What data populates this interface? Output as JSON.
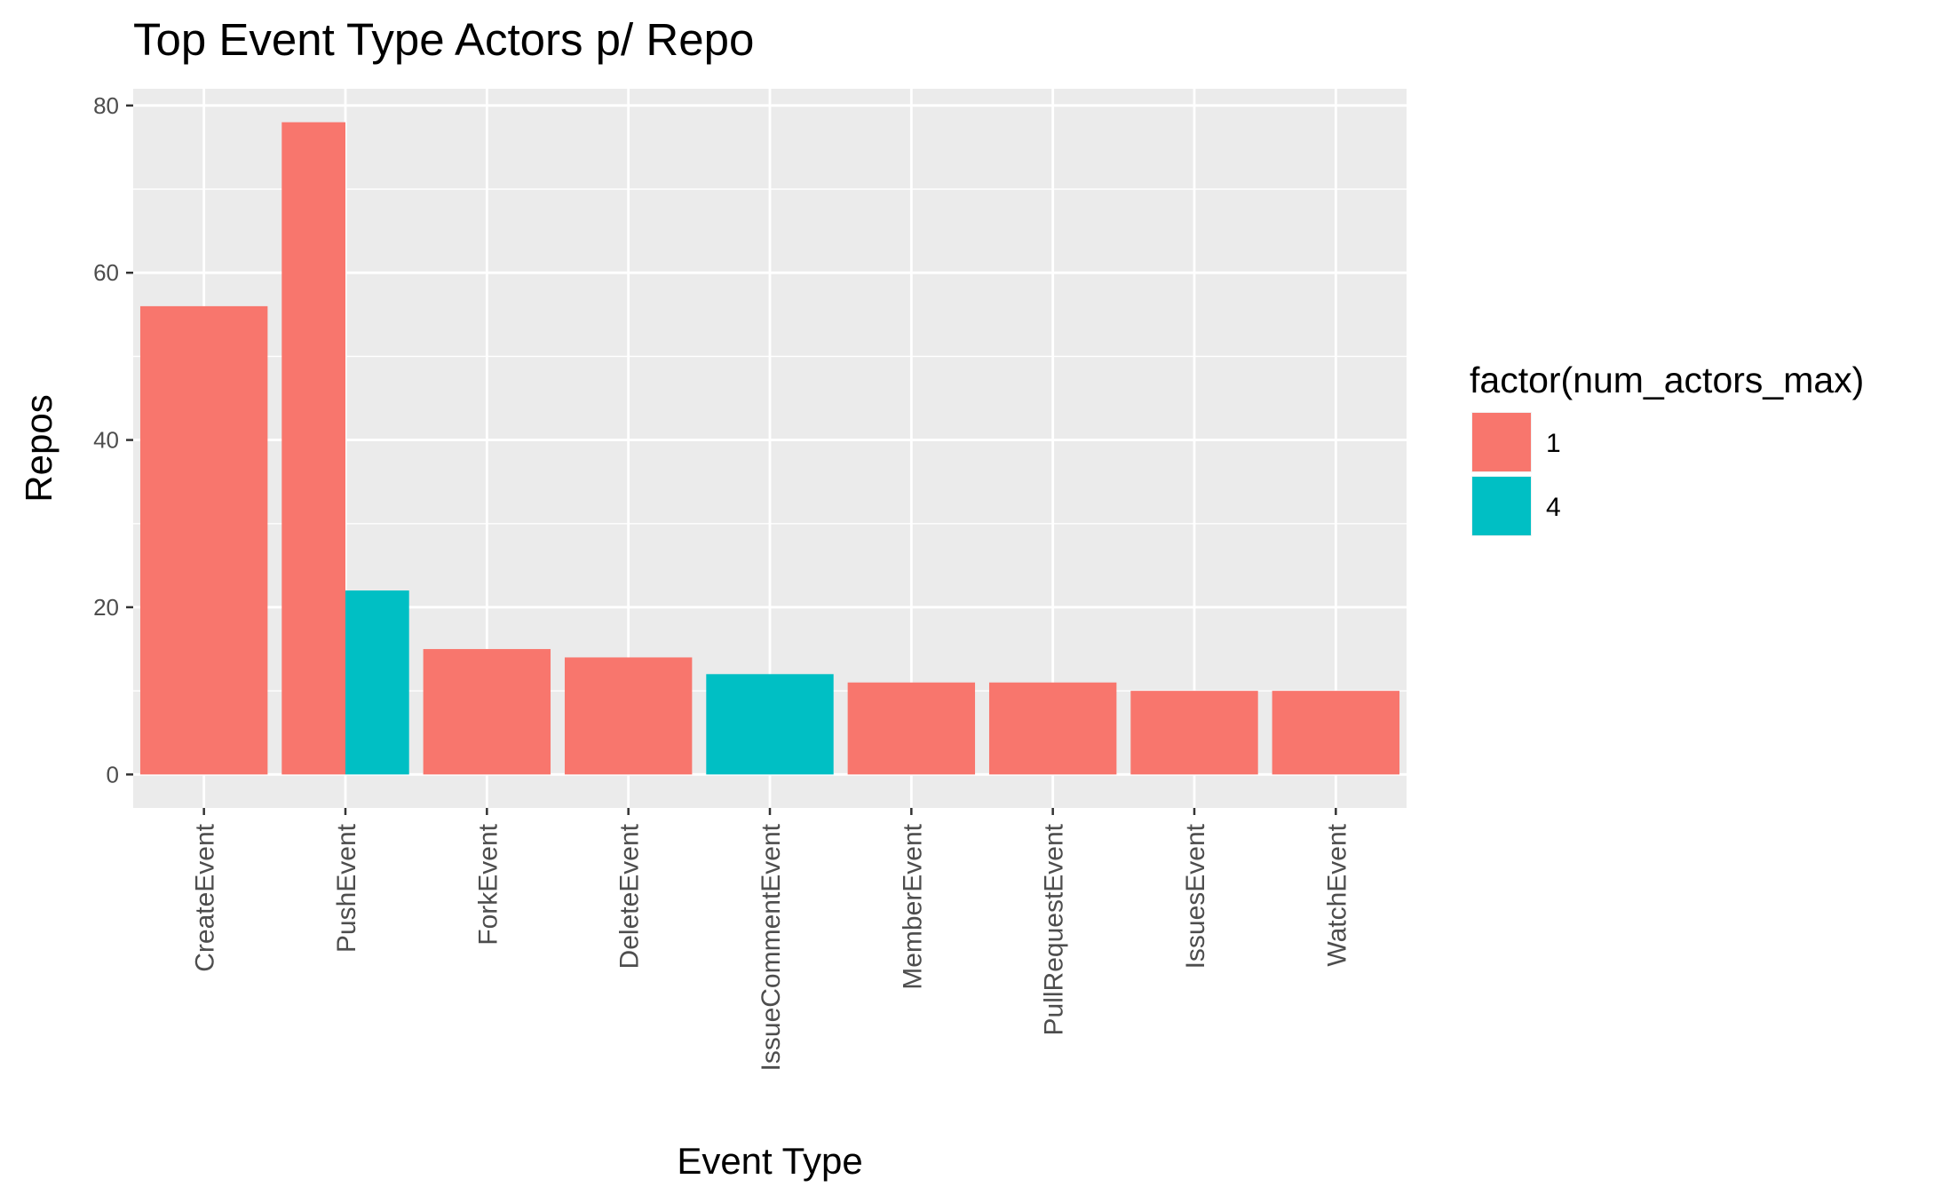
{
  "chart_data": {
    "type": "bar",
    "position": "dodge",
    "title": "Top Event Type Actors p/ Repo",
    "xlabel": "Event Type",
    "ylabel": "Repos",
    "ylim": [
      -4,
      82
    ],
    "yticks": [
      0,
      20,
      40,
      60,
      80
    ],
    "grid": true,
    "categories": [
      "CreateEvent",
      "PushEvent",
      "ForkEvent",
      "DeleteEvent",
      "IssueCommentEvent",
      "MemberEvent",
      "PullRequestEvent",
      "IssuesEvent",
      "WatchEvent"
    ],
    "series": [
      {
        "name": "1",
        "color": "#F8766D",
        "values": [
          56,
          78,
          15,
          14,
          null,
          11,
          11,
          10,
          10
        ]
      },
      {
        "name": "4",
        "color": "#00BFC4",
        "values": [
          null,
          22,
          null,
          null,
          12,
          null,
          null,
          null,
          null
        ]
      }
    ],
    "legend": {
      "title": "factor(num_actors_max)",
      "position": "right"
    }
  }
}
